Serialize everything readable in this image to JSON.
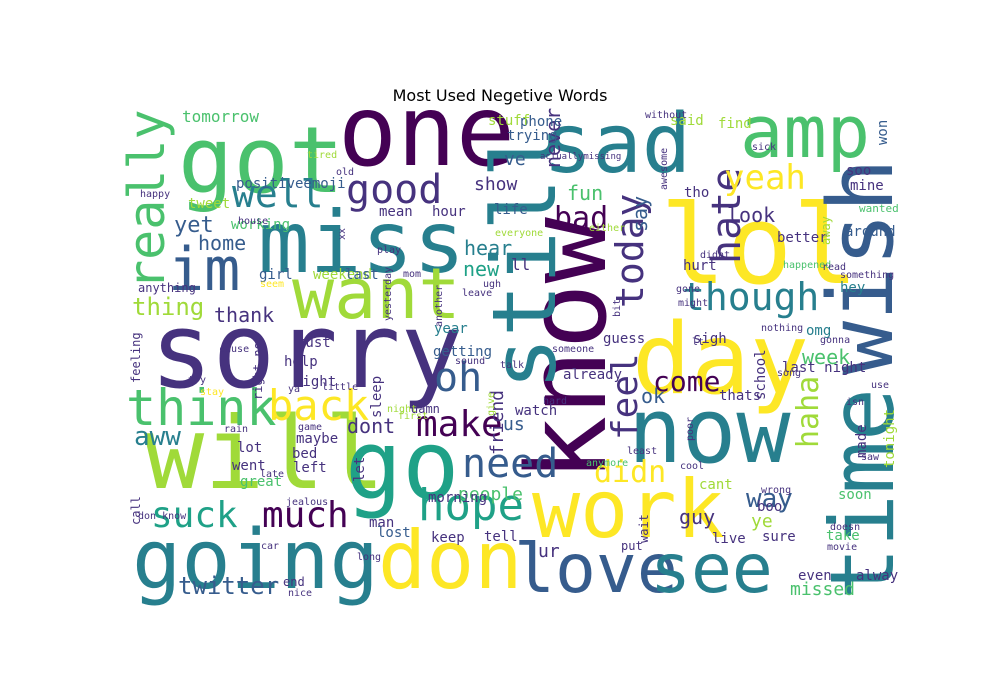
{
  "title": "Most Used Negetive Words",
  "palette": [
    "#440154",
    "#46327e",
    "#365c8d",
    "#277f8e",
    "#1fa187",
    "#4ac16d",
    "#a0da39",
    "#fde725"
  ],
  "words": [
    {
      "text": "one",
      "color": "#440154"
    },
    {
      "text": "got",
      "color": "#4ac16d"
    },
    {
      "text": "sad",
      "color": "#277f8e"
    },
    {
      "text": "amp",
      "color": "#4ac16d"
    },
    {
      "text": "miss",
      "color": "#277f8e"
    },
    {
      "text": "lol",
      "color": "#fde725"
    },
    {
      "text": "im",
      "color": "#365c8d"
    },
    {
      "text": "want",
      "color": "#a0da39"
    },
    {
      "text": "sorry",
      "color": "#46327e"
    },
    {
      "text": "know",
      "color": "#440154"
    },
    {
      "text": "still",
      "color": "#277f8e"
    },
    {
      "text": "wish",
      "color": "#365c8d"
    },
    {
      "text": "time",
      "color": "#277f8e"
    },
    {
      "text": "day",
      "color": "#fde725"
    },
    {
      "text": "now",
      "color": "#277f8e"
    },
    {
      "text": "will",
      "color": "#a0da39"
    },
    {
      "text": "go",
      "color": "#1fa187"
    },
    {
      "text": "work",
      "color": "#fde725"
    },
    {
      "text": "going",
      "color": "#277f8e"
    },
    {
      "text": "don",
      "color": "#fde725"
    },
    {
      "text": "love",
      "color": "#365c8d"
    },
    {
      "text": "see",
      "color": "#277f8e"
    },
    {
      "text": "really",
      "color": "#4ac16d"
    },
    {
      "text": "good",
      "color": "#46327e"
    },
    {
      "text": "well",
      "color": "#277f8e"
    },
    {
      "text": "think",
      "color": "#4ac16d"
    },
    {
      "text": "back",
      "color": "#fde725"
    },
    {
      "text": "oh",
      "color": "#365c8d"
    },
    {
      "text": "make",
      "color": "#440154"
    },
    {
      "text": "need",
      "color": "#365c8d"
    },
    {
      "text": "hope",
      "color": "#1fa187"
    },
    {
      "text": "suck",
      "color": "#1fa187"
    },
    {
      "text": "much",
      "color": "#440154"
    },
    {
      "text": "feel",
      "color": "#46327e"
    },
    {
      "text": "today",
      "color": "#46327e"
    },
    {
      "text": "hate",
      "color": "#46327e"
    },
    {
      "text": "yeah",
      "color": "#fde725"
    },
    {
      "text": "though",
      "color": "#277f8e"
    },
    {
      "text": "come",
      "color": "#440154"
    },
    {
      "text": "haha",
      "color": "#a0da39"
    },
    {
      "text": "didn",
      "color": "#fde725"
    },
    {
      "text": "bad",
      "color": "#440154"
    },
    {
      "text": "fun",
      "color": "#4ac16d"
    },
    {
      "text": "look",
      "color": "#46327e"
    },
    {
      "text": "thank",
      "color": "#46327e"
    },
    {
      "text": "thing",
      "color": "#a0da39"
    },
    {
      "text": "aww",
      "color": "#277f8e"
    },
    {
      "text": "twitter",
      "color": "#365c8d"
    },
    {
      "text": "yet",
      "color": "#365c8d"
    },
    {
      "text": "home",
      "color": "#365c8d"
    },
    {
      "text": "new",
      "color": "#1fa187"
    },
    {
      "text": "ll",
      "color": "#46327e"
    },
    {
      "text": "hear",
      "color": "#277f8e"
    },
    {
      "text": "show",
      "color": "#46327e"
    },
    {
      "text": "ve",
      "color": "#365c8d"
    },
    {
      "text": "never",
      "color": "#46327e"
    },
    {
      "text": "say",
      "color": "#365c8d"
    },
    {
      "text": "ok",
      "color": "#365c8d"
    },
    {
      "text": "week",
      "color": "#4ac16d"
    },
    {
      "text": "way",
      "color": "#365c8d"
    },
    {
      "text": "guy",
      "color": "#46327e"
    },
    {
      "text": "ye",
      "color": "#a0da39"
    },
    {
      "text": "dont",
      "color": "#46327e"
    },
    {
      "text": "people",
      "color": "#4ac16d"
    },
    {
      "text": "friend",
      "color": "#46327e"
    },
    {
      "text": "us",
      "color": "#365c8d"
    },
    {
      "text": "ur",
      "color": "#46327e"
    },
    {
      "text": "missed",
      "color": "#4ac16d"
    },
    {
      "text": "tomorrow",
      "color": "#4ac16d"
    },
    {
      "text": "positiveemoji",
      "color": "#365c8d"
    },
    {
      "text": "tweet",
      "color": "#a0da39"
    },
    {
      "text": "working",
      "color": "#4ac16d"
    },
    {
      "text": "girl",
      "color": "#365c8d"
    },
    {
      "text": "weekend",
      "color": "#a0da39"
    },
    {
      "text": "last",
      "color": "#365c8d"
    },
    {
      "text": "mean",
      "color": "#46327e"
    },
    {
      "text": "hour",
      "color": "#46327e"
    },
    {
      "text": "life",
      "color": "#365c8d"
    },
    {
      "text": "trying",
      "color": "#365c8d"
    },
    {
      "text": "phone",
      "color": "#365c8d"
    },
    {
      "text": "stuff",
      "color": "#a0da39"
    },
    {
      "text": "said",
      "color": "#a0da39"
    },
    {
      "text": "find",
      "color": "#a0da39"
    },
    {
      "text": "won",
      "color": "#365c8d"
    },
    {
      "text": "sick",
      "color": "#46327e"
    },
    {
      "text": "soo",
      "color": "#46327e"
    },
    {
      "text": "mine",
      "color": "#46327e"
    },
    {
      "text": "wanted",
      "color": "#4ac16d"
    },
    {
      "text": "around",
      "color": "#365c8d"
    },
    {
      "text": "better",
      "color": "#46327e"
    },
    {
      "text": "tho",
      "color": "#46327e"
    },
    {
      "text": "hurt",
      "color": "#46327e"
    },
    {
      "text": "hey",
      "color": "#277f8e"
    },
    {
      "text": "omg",
      "color": "#277f8e"
    },
    {
      "text": "sigh",
      "color": "#46327e"
    },
    {
      "text": "gonna",
      "color": "#46327e"
    },
    {
      "text": "last night",
      "color": "#46327e"
    },
    {
      "text": "school",
      "color": "#46327e"
    },
    {
      "text": "guess",
      "color": "#46327e"
    },
    {
      "text": "year",
      "color": "#277f8e"
    },
    {
      "text": "getting",
      "color": "#365c8d"
    },
    {
      "text": "sleep",
      "color": "#46327e"
    },
    {
      "text": "already",
      "color": "#46327e"
    },
    {
      "text": "thats",
      "color": "#46327e"
    },
    {
      "text": "made",
      "color": "#46327e"
    },
    {
      "text": "tonight",
      "color": "#a0da39"
    },
    {
      "text": "soon",
      "color": "#4ac16d"
    },
    {
      "text": "take",
      "color": "#4ac16d"
    },
    {
      "text": "alway",
      "color": "#46327e"
    },
    {
      "text": "even",
      "color": "#46327e"
    },
    {
      "text": "cant",
      "color": "#a0da39"
    },
    {
      "text": "boo",
      "color": "#46327e"
    },
    {
      "text": "sure",
      "color": "#46327e"
    },
    {
      "text": "live",
      "color": "#46327e"
    },
    {
      "text": "tell",
      "color": "#46327e"
    },
    {
      "text": "keep",
      "color": "#46327e"
    },
    {
      "text": "morning",
      "color": "#46327e"
    },
    {
      "text": "man",
      "color": "#46327e"
    },
    {
      "text": "lost",
      "color": "#365c8d"
    },
    {
      "text": "long",
      "color": "#46327e"
    },
    {
      "text": "end",
      "color": "#46327e"
    },
    {
      "text": "nice",
      "color": "#46327e"
    },
    {
      "text": "must",
      "color": "#46327e"
    },
    {
      "text": "help",
      "color": "#46327e"
    },
    {
      "text": "right",
      "color": "#46327e"
    },
    {
      "text": "lot",
      "color": "#46327e"
    },
    {
      "text": "maybe",
      "color": "#46327e"
    },
    {
      "text": "bed",
      "color": "#46327e"
    },
    {
      "text": "left",
      "color": "#46327e"
    },
    {
      "text": "went",
      "color": "#46327e"
    },
    {
      "text": "great",
      "color": "#4ac16d"
    },
    {
      "text": "call",
      "color": "#46327e"
    },
    {
      "text": "feeling",
      "color": "#46327e"
    },
    {
      "text": "right now",
      "color": "#46327e"
    },
    {
      "text": "anything",
      "color": "#46327e"
    },
    {
      "text": "let",
      "color": "#46327e"
    },
    {
      "text": "watch",
      "color": "#46327e"
    },
    {
      "text": "damn",
      "color": "#46327e"
    },
    {
      "text": "night",
      "color": "#a0da39"
    },
    {
      "text": "first",
      "color": "#a0da39"
    },
    {
      "text": "tired",
      "color": "#a0da39"
    },
    {
      "text": "happy",
      "color": "#46327e"
    },
    {
      "text": "old",
      "color": "#46327e"
    },
    {
      "text": "actuallymissing",
      "color": "#46327e"
    },
    {
      "text": "awesome",
      "color": "#46327e"
    },
    {
      "text": "without",
      "color": "#46327e"
    },
    {
      "text": "away",
      "color": "#a0da39"
    },
    {
      "text": "something",
      "color": "#46327e"
    },
    {
      "text": "happened",
      "color": "#4ac16d"
    },
    {
      "text": "read",
      "color": "#46327e"
    },
    {
      "text": "gone",
      "color": "#46327e"
    },
    {
      "text": "might",
      "color": "#46327e"
    },
    {
      "text": "didnt",
      "color": "#46327e"
    },
    {
      "text": "bit",
      "color": "#46327e"
    },
    {
      "text": "nothing",
      "color": "#46327e"
    },
    {
      "text": "lt",
      "color": "#46327e"
    },
    {
      "text": "song",
      "color": "#46327e"
    },
    {
      "text": "poor",
      "color": "#46327e"
    },
    {
      "text": "cool",
      "color": "#46327e"
    },
    {
      "text": "wrong",
      "color": "#46327e"
    },
    {
      "text": "doesn",
      "color": "#46327e"
    },
    {
      "text": "movie",
      "color": "#46327e"
    },
    {
      "text": "put",
      "color": "#46327e"
    },
    {
      "text": "wait",
      "color": "#46327e"
    },
    {
      "text": "anymore",
      "color": "#4ac16d"
    },
    {
      "text": "least",
      "color": "#46327e"
    },
    {
      "text": "isn",
      "color": "#46327e"
    },
    {
      "text": "saw",
      "color": "#46327e"
    },
    {
      "text": "use",
      "color": "#46327e"
    },
    {
      "text": "seem",
      "color": "#fde725"
    },
    {
      "text": "play",
      "color": "#46327e"
    },
    {
      "text": "mom",
      "color": "#46327e"
    },
    {
      "text": "yesterday",
      "color": "#46327e"
    },
    {
      "text": "another",
      "color": "#46327e"
    },
    {
      "text": "leave",
      "color": "#46327e"
    },
    {
      "text": "ugh",
      "color": "#46327e"
    },
    {
      "text": "sound",
      "color": "#46327e"
    },
    {
      "text": "talk",
      "color": "#46327e"
    },
    {
      "text": "give",
      "color": "#a0da39"
    },
    {
      "text": "someone",
      "color": "#46327e"
    },
    {
      "text": "hard",
      "color": "#46327e"
    },
    {
      "text": "cause",
      "color": "#46327e"
    },
    {
      "text": "try",
      "color": "#46327e"
    },
    {
      "text": "stay",
      "color": "#fde725"
    },
    {
      "text": "ya",
      "color": "#46327e"
    },
    {
      "text": "little",
      "color": "#46327e"
    },
    {
      "text": "rain",
      "color": "#46327e"
    },
    {
      "text": "game",
      "color": "#46327e"
    },
    {
      "text": "late",
      "color": "#46327e"
    },
    {
      "text": "jealous",
      "color": "#46327e"
    },
    {
      "text": "don know",
      "color": "#46327e"
    },
    {
      "text": "car",
      "color": "#46327e"
    },
    {
      "text": "xx",
      "color": "#46327e"
    },
    {
      "text": "everyone",
      "color": "#a0da39"
    },
    {
      "text": "either",
      "color": "#a0da39"
    },
    {
      "text": "house",
      "color": "#46327e"
    },
    {
      "text": "done",
      "color": "#46327e"
    }
  ]
}
